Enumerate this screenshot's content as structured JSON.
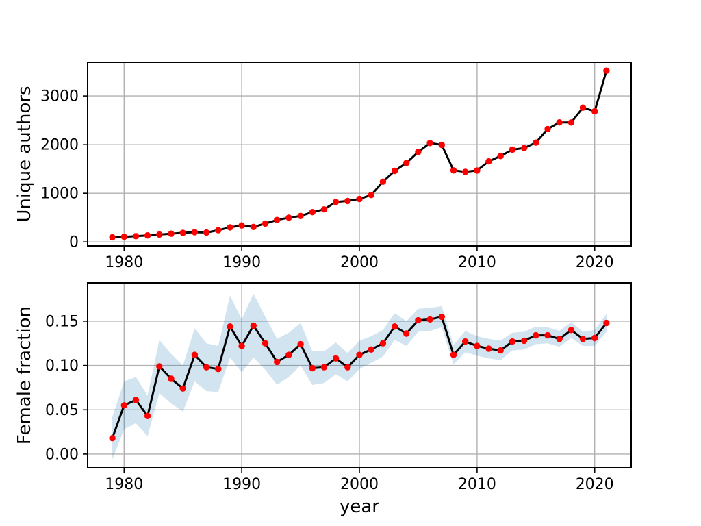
{
  "figure": {
    "background": "#ffffff"
  },
  "chart_data": [
    {
      "type": "line",
      "title": "",
      "ylabel": "Unique authors",
      "xlabel": "",
      "legend": null,
      "grid": true,
      "grid_color": "#b0b0b0",
      "line_color": "#000000",
      "marker_color": "#ff0000",
      "xlim": [
        1976.9,
        2023.1
      ],
      "ylim": [
        -82,
        3692
      ],
      "xticks": [
        1980,
        1990,
        2000,
        2010,
        2020
      ],
      "xtick_labels": [
        "1980",
        "1990",
        "2000",
        "2010",
        "2020"
      ],
      "yticks": [
        0,
        1000,
        2000,
        3000
      ],
      "ytick_labels": [
        "0",
        "1000",
        "2000",
        "3000"
      ],
      "x": [
        1979,
        1980,
        1981,
        1982,
        1983,
        1984,
        1985,
        1986,
        1987,
        1988,
        1989,
        1990,
        1991,
        1992,
        1993,
        1994,
        1995,
        1996,
        1997,
        1998,
        1999,
        2000,
        2001,
        2002,
        2003,
        2004,
        2005,
        2006,
        2007,
        2008,
        2009,
        2010,
        2011,
        2012,
        2013,
        2014,
        2015,
        2016,
        2017,
        2018,
        2019,
        2020,
        2021
      ],
      "series": [
        {
          "name": "unique_authors",
          "values": [
            95,
            105,
            118,
            133,
            152,
            168,
            187,
            200,
            192,
            240,
            300,
            338,
            308,
            377,
            450,
            498,
            533,
            612,
            668,
            820,
            842,
            882,
            965,
            1237,
            1460,
            1624,
            1850,
            2033,
            1995,
            1470,
            1440,
            1468,
            1656,
            1765,
            1896,
            1929,
            2042,
            2320,
            2457,
            2455,
            2760,
            2685,
            3520
          ]
        }
      ]
    },
    {
      "type": "line",
      "title": "",
      "ylabel": "Female fraction",
      "xlabel": "year",
      "legend": null,
      "grid": true,
      "grid_color": "#b0b0b0",
      "line_color": "#000000",
      "marker_color": "#ff0000",
      "xlim": [
        1976.9,
        2023.1
      ],
      "ylim": [
        -0.0155,
        0.1932
      ],
      "xticks": [
        1980,
        1990,
        2000,
        2010,
        2020
      ],
      "xtick_labels": [
        "1980",
        "1990",
        "2000",
        "2010",
        "2020"
      ],
      "yticks": [
        0,
        0.05,
        0.1,
        0.15
      ],
      "ytick_labels": [
        "0.00",
        "0.05",
        "0.10",
        "0.15"
      ],
      "x": [
        1979,
        1980,
        1981,
        1982,
        1983,
        1984,
        1985,
        1986,
        1987,
        1988,
        1989,
        1990,
        1991,
        1992,
        1993,
        1994,
        1995,
        1996,
        1997,
        1998,
        1999,
        2000,
        2001,
        2002,
        2003,
        2004,
        2005,
        2006,
        2007,
        2008,
        2009,
        2010,
        2011,
        2012,
        2013,
        2014,
        2015,
        2016,
        2017,
        2018,
        2019,
        2020,
        2021
      ],
      "series": [
        {
          "name": "female_fraction",
          "values": [
            0.018,
            0.055,
            0.061,
            0.043,
            0.099,
            0.085,
            0.074,
            0.112,
            0.098,
            0.096,
            0.144,
            0.122,
            0.145,
            0.125,
            0.104,
            0.112,
            0.124,
            0.097,
            0.098,
            0.108,
            0.098,
            0.112,
            0.118,
            0.125,
            0.144,
            0.136,
            0.151,
            0.152,
            0.155,
            0.112,
            0.127,
            0.122,
            0.119,
            0.117,
            0.127,
            0.128,
            0.134,
            0.134,
            0.13,
            0.14,
            0.13,
            0.131,
            0.148
          ]
        }
      ],
      "band": {
        "name": "confidence_band",
        "fill_color": "#1f77b4",
        "fill_opacity": 0.2,
        "upper": [
          0.042,
          0.082,
          0.087,
          0.066,
          0.129,
          0.113,
          0.1,
          0.142,
          0.125,
          0.122,
          0.179,
          0.152,
          0.181,
          0.155,
          0.13,
          0.137,
          0.148,
          0.116,
          0.116,
          0.126,
          0.114,
          0.128,
          0.133,
          0.14,
          0.159,
          0.15,
          0.164,
          0.165,
          0.167,
          0.123,
          0.139,
          0.133,
          0.13,
          0.128,
          0.137,
          0.138,
          0.144,
          0.143,
          0.139,
          0.149,
          0.138,
          0.14,
          0.158
        ],
        "lower": [
          -0.006,
          0.028,
          0.035,
          0.02,
          0.069,
          0.057,
          0.048,
          0.082,
          0.071,
          0.07,
          0.109,
          0.092,
          0.109,
          0.095,
          0.078,
          0.087,
          0.1,
          0.078,
          0.08,
          0.09,
          0.082,
          0.096,
          0.103,
          0.11,
          0.129,
          0.122,
          0.138,
          0.139,
          0.143,
          0.101,
          0.115,
          0.111,
          0.108,
          0.106,
          0.117,
          0.118,
          0.124,
          0.125,
          0.121,
          0.131,
          0.122,
          0.122,
          0.138
        ]
      }
    }
  ]
}
